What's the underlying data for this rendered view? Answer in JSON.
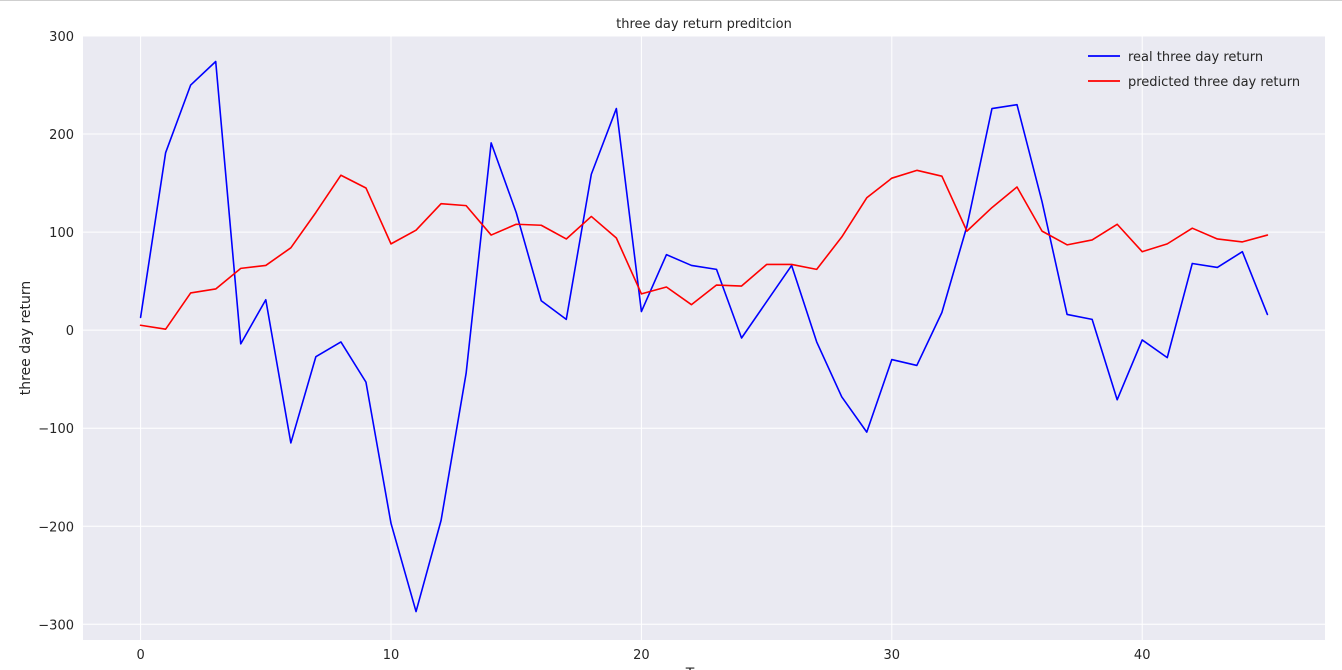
{
  "chart_data": {
    "type": "line",
    "title": "three day return preditcion",
    "xlabel": "T",
    "ylabel": "three day return",
    "xlim": [
      -2.3,
      47.3
    ],
    "ylim": [
      -316,
      300
    ],
    "x_ticks": [
      0,
      10,
      20,
      30,
      40
    ],
    "y_ticks": [
      -300,
      -200,
      -100,
      0,
      100,
      200,
      300
    ],
    "x_tick_labels": [
      "0",
      "10",
      "20",
      "30",
      "40"
    ],
    "y_tick_labels": [
      "−300",
      "−200",
      "−100",
      "0",
      "100",
      "200",
      "300"
    ],
    "grid": true,
    "legend_position": "top-right",
    "background_color": "#eaeaf2",
    "grid_color": "#ffffff",
    "x": [
      0,
      1,
      2,
      3,
      4,
      5,
      6,
      7,
      8,
      9,
      10,
      11,
      12,
      13,
      14,
      15,
      16,
      17,
      18,
      19,
      20,
      21,
      22,
      23,
      24,
      25,
      26,
      27,
      28,
      29,
      30,
      31,
      32,
      33,
      34,
      35,
      36,
      37,
      38,
      39,
      40,
      41,
      42,
      43,
      44,
      45
    ],
    "series": [
      {
        "name": "real three day return",
        "color": "#0000ff",
        "values": [
          13,
          181,
          250,
          274,
          -14,
          31,
          -115,
          -27,
          -12,
          -53,
          -197,
          -287,
          -194,
          -44,
          191,
          120,
          30,
          11,
          159,
          226,
          19,
          77,
          66,
          62,
          -8,
          29,
          66,
          -12,
          -68,
          -104,
          -30,
          -36,
          18,
          106,
          226,
          230,
          131,
          16,
          11,
          -71,
          -10,
          -28,
          68,
          64,
          80,
          16
        ]
      },
      {
        "name": "predicted three day return",
        "color": "#ff0000",
        "values": [
          5,
          1,
          38,
          42,
          63,
          66,
          84,
          120,
          158,
          145,
          88,
          102,
          129,
          127,
          97,
          108,
          107,
          93,
          116,
          94,
          37,
          44,
          26,
          46,
          45,
          67,
          67,
          62,
          95,
          135,
          155,
          163,
          157,
          101,
          125,
          146,
          101,
          87,
          92,
          108,
          80,
          88,
          104,
          93,
          90,
          97
        ]
      }
    ]
  }
}
